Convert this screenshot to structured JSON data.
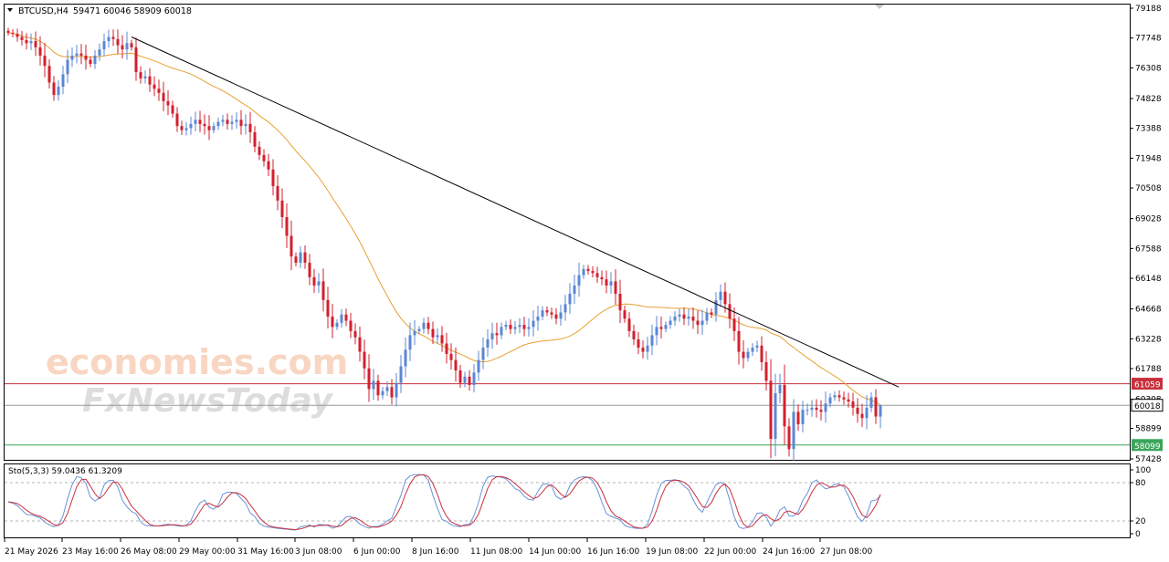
{
  "header": {
    "symbol_label": "BTCUSD,H4",
    "ohlc": "59471 60046 58909 60018",
    "menu_arrow": "caret-down-icon"
  },
  "indicator": {
    "label": "Sto(5,3,3) 59.0436 61.3209",
    "levels": [
      "100",
      "80",
      "20",
      "0"
    ]
  },
  "watermark": {
    "line1": "economies.com",
    "line2": "FxNewsToday"
  },
  "price_labels": {
    "resistance": "61059",
    "current": "60018",
    "support": "58099"
  },
  "colors": {
    "bull": "#5b87d3",
    "bear": "#d2202e",
    "ma": "#e8a030",
    "trendline": "#000000",
    "resistance": "#c8303c",
    "support": "#3aa65a",
    "stoch_main": "#6b93d8",
    "stoch_signal": "#c8303c"
  },
  "chart_data": {
    "type": "candlestick",
    "symbol": "BTCUSD",
    "timeframe": "H4",
    "last_bar": {
      "open": 59471,
      "high": 60046,
      "low": 58909,
      "close": 60018
    },
    "y_ticks": [
      79188,
      77748,
      76308,
      74828,
      73388,
      71948,
      70508,
      69028,
      67588,
      66148,
      64668,
      63228,
      61788,
      60308,
      58899,
      57428
    ],
    "x_ticks": [
      "21 May 2026",
      "23 May 16:00",
      "26 May 08:00",
      "29 May 00:00",
      "31 May 16:00",
      "3 Jun 08:00",
      "6 Jun 00:00",
      "8 Jun 16:00",
      "11 Jun 08:00",
      "14 Jun 00:00",
      "16 Jun 16:00",
      "19 Jun 08:00",
      "22 Jun 00:00",
      "24 Jun 16:00",
      "27 Jun 08:00"
    ],
    "closes": [
      78000,
      77950,
      77800,
      77650,
      77500,
      77600,
      77300,
      76900,
      76400,
      75600,
      75000,
      75400,
      76000,
      76700,
      76900,
      77000,
      76900,
      76700,
      76500,
      76900,
      77200,
      77600,
      77800,
      77700,
      77400,
      77200,
      77500,
      77300,
      76100,
      75800,
      75900,
      75500,
      75300,
      75100,
      74700,
      74500,
      74100,
      73500,
      73300,
      73400,
      73600,
      73800,
      73600,
      73500,
      73300,
      73500,
      73700,
      73800,
      73600,
      73700,
      73800,
      73500,
      73600,
      73200,
      72500,
      72100,
      71800,
      71400,
      70600,
      69900,
      69100,
      68200,
      67200,
      66900,
      67400,
      66900,
      66200,
      65800,
      66000,
      65100,
      64300,
      63800,
      64000,
      64400,
      64100,
      63600,
      63300,
      62600,
      61800,
      60800,
      61200,
      60500,
      60700,
      60900,
      60400,
      61100,
      61900,
      62700,
      63400,
      63600,
      63700,
      64000,
      63700,
      63300,
      63400,
      63000,
      62500,
      62200,
      61700,
      61100,
      61400,
      61000,
      61600,
      62200,
      62800,
      63200,
      63500,
      63400,
      63800,
      63900,
      63700,
      63800,
      63900,
      63700,
      63800,
      64100,
      64300,
      64600,
      64500,
      64400,
      64200,
      64500,
      64900,
      65400,
      65800,
      66300,
      66600,
      66500,
      66400,
      66200,
      66100,
      65800,
      66000,
      65400,
      64600,
      64200,
      63600,
      63200,
      62800,
      62600,
      62900,
      63400,
      63800,
      63700,
      63900,
      64100,
      64300,
      64400,
      64200,
      64300,
      64100,
      63900,
      64100,
      64500,
      64400,
      65100,
      65500,
      64900,
      64200,
      63600,
      62600,
      62300,
      62600,
      62800,
      62900,
      62100,
      61200,
      58400,
      60600,
      61000,
      59000,
      57900,
      59700,
      59100,
      59800,
      59800,
      59900,
      59800,
      59700,
      60100,
      60400,
      60500,
      60400,
      60300,
      60200,
      59900,
      59600,
      59400,
      59900,
      60400,
      59471,
      60018
    ],
    "ma_label": "moving average",
    "trendline": {
      "from": {
        "x": "26 May 08:00",
        "y": 77800
      },
      "to": {
        "x": "27 Jun 16:00",
        "y": 60900
      }
    },
    "horizontal_levels": [
      {
        "value": 61059,
        "color": "#c8303c"
      },
      {
        "value": 60018,
        "color": "#9a9a9a"
      },
      {
        "value": 58099,
        "color": "#3aa65a"
      }
    ],
    "stochastic": {
      "params": "5,3,3",
      "main_last": 59.0436,
      "signal_last": 61.3209,
      "levels": [
        80,
        20
      ],
      "ylim": [
        0,
        100
      ]
    }
  }
}
